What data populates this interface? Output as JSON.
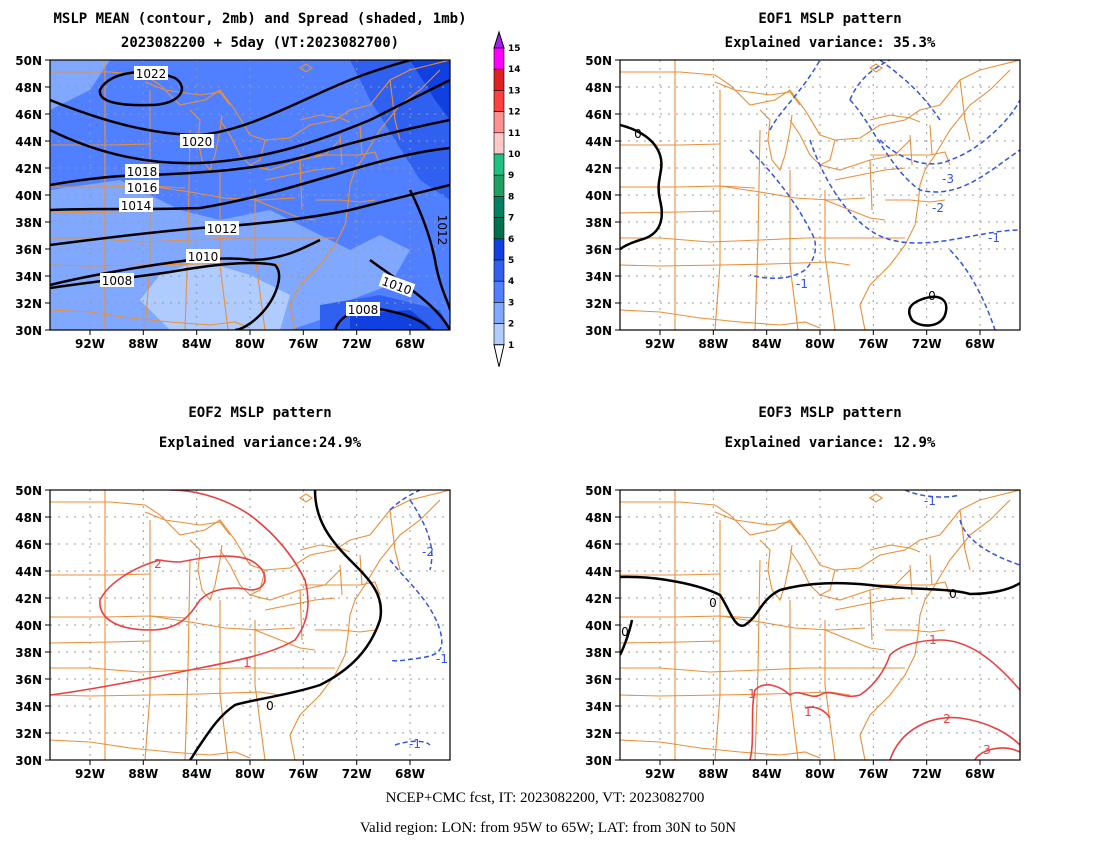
{
  "panels": [
    {
      "id": "mean",
      "title_line1": "MSLP MEAN (contour, 2mb) and Spread (shaded, 1mb)",
      "title_line2": "2023082200 + 5day (VT:2023082700)",
      "contour_labels": [
        "1022",
        "1020",
        "1018",
        "1016",
        "1014",
        "1012",
        "1010",
        "1008",
        "1010",
        "1008",
        "1012"
      ]
    },
    {
      "id": "eof1",
      "title_line1": "EOF1 MSLP pattern",
      "title_line2": "Explained variance: 35.3%",
      "contour_labels": [
        "0",
        "-3",
        "-2",
        "-1",
        "-1",
        "0"
      ]
    },
    {
      "id": "eof2",
      "title_line1": "EOF2 MSLP pattern",
      "title_line2": "Explained variance:24.9%",
      "contour_labels": [
        "2",
        "1",
        "0",
        "-2",
        "-1",
        "-1"
      ]
    },
    {
      "id": "eof3",
      "title_line1": "EOF3 MSLP pattern",
      "title_line2": "Explained variance: 12.9%",
      "contour_labels": [
        "0",
        "0",
        "0",
        "1",
        "1",
        "1",
        "2",
        "3",
        "-1"
      ]
    }
  ],
  "lat_ticks": [
    "50N",
    "48N",
    "46N",
    "44N",
    "42N",
    "40N",
    "38N",
    "36N",
    "34N",
    "32N",
    "30N"
  ],
  "lon_ticks": [
    "92W",
    "88W",
    "84W",
    "80W",
    "76W",
    "72W",
    "68W"
  ],
  "colorbar": {
    "labels": [
      "15",
      "14",
      "13",
      "12",
      "11",
      "10",
      "9",
      "8",
      "7",
      "6",
      "5",
      "4",
      "3",
      "2",
      "1"
    ],
    "colors": [
      "#a020f0",
      "#ff00ff",
      "#e02020",
      "#ff4040",
      "#ff9090",
      "#ffc8c8",
      "#20c080",
      "#20a060",
      "#008060",
      "#007050",
      "#1040e0",
      "#3060f0",
      "#5080ff",
      "#80a8ff",
      "#b0ccff"
    ]
  },
  "footer": {
    "line1": "NCEP+CMC fcst, IT: 2023082200, VT: 2023082700",
    "line2": "Valid region: LON: from 95W to 65W; LAT: from 30N to 50N"
  }
}
